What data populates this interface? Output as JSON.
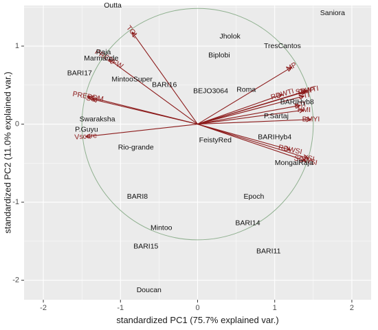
{
  "chart_data": {
    "type": "scatter",
    "subtype": "pca-biplot",
    "xlabel": "standardized PC1 (75.7% explained var.)",
    "ylabel": "standardized PC2 (11.0% explained var.)",
    "xlim": [
      -2.25,
      2.25
    ],
    "ylim": [
      -2.25,
      1.52
    ],
    "xticks": [
      -2,
      -1,
      0,
      1,
      2
    ],
    "yticks": [
      -2,
      -1,
      0,
      1
    ],
    "grid": true,
    "background": "#ebebeb",
    "grid_color": "#ffffff",
    "circle_color": "#8fb08f",
    "arrow_color": "#8b1a1a",
    "observations": [
      {
        "label": "Outta",
        "x": -1.1,
        "y": 1.52
      },
      {
        "label": "Saniora",
        "x": 1.75,
        "y": 1.42
      },
      {
        "label": "Jholok",
        "x": 0.42,
        "y": 1.12
      },
      {
        "label": "TresCantos",
        "x": 1.1,
        "y": 1.0
      },
      {
        "label": "Biplobi",
        "x": 0.28,
        "y": 0.88
      },
      {
        "label": "Raja",
        "x": -1.22,
        "y": 0.92
      },
      {
        "label": "Marmande",
        "x": -1.25,
        "y": 0.84
      },
      {
        "label": "BARI17",
        "x": -1.53,
        "y": 0.65
      },
      {
        "label": "MintooSuper",
        "x": -0.85,
        "y": 0.57
      },
      {
        "label": "BARI16",
        "x": -0.43,
        "y": 0.5
      },
      {
        "label": "BEJO3064",
        "x": 0.17,
        "y": 0.42
      },
      {
        "label": "Roma",
        "x": 0.63,
        "y": 0.44
      },
      {
        "label": "BARIHyb8",
        "x": 1.29,
        "y": 0.28
      },
      {
        "label": "P.Sartaj",
        "x": 1.02,
        "y": 0.1
      },
      {
        "label": "Swaraksha",
        "x": -1.3,
        "y": 0.06
      },
      {
        "label": "P.Guyu",
        "x": -1.44,
        "y": -0.07
      },
      {
        "label": "BARIHyb4",
        "x": 1.0,
        "y": -0.17
      },
      {
        "label": "FeistyRed",
        "x": 0.23,
        "y": -0.21
      },
      {
        "label": "Rio-grande",
        "x": -0.8,
        "y": -0.3
      },
      {
        "label": "MongalRaja",
        "x": 1.25,
        "y": -0.5
      },
      {
        "label": "BARI8",
        "x": -0.78,
        "y": -0.93
      },
      {
        "label": "Epoch",
        "x": 0.73,
        "y": -0.93
      },
      {
        "label": "BARI14",
        "x": 0.65,
        "y": -1.27
      },
      {
        "label": "Mintoo",
        "x": -0.47,
        "y": -1.33
      },
      {
        "label": "BARI15",
        "x": -0.67,
        "y": -1.57
      },
      {
        "label": "BARI11",
        "x": 0.92,
        "y": -1.63
      },
      {
        "label": "Doucan",
        "x": -0.63,
        "y": -2.13
      }
    ],
    "loadings": [
      {
        "label": "TOL",
        "x": -0.85,
        "y": 1.18,
        "angle": 50
      },
      {
        "label": "PREDFW",
        "x": -1.15,
        "y": 0.83,
        "angle": 30
      },
      {
        "label": "PREDDM",
        "x": -1.42,
        "y": 0.35,
        "angle": 10
      },
      {
        "label": "SSI",
        "x": -1.37,
        "y": 0.32,
        "angle": 10
      },
      {
        "label": "Vscore",
        "x": -1.45,
        "y": -0.16,
        "angle": -5
      },
      {
        "label": "MP",
        "x": 1.22,
        "y": 0.73,
        "angle": -30
      },
      {
        "label": "RDWTI",
        "x": 1.1,
        "y": 0.38,
        "angle": -16
      },
      {
        "label": "SDWTI",
        "x": 1.42,
        "y": 0.43,
        "angle": -10
      },
      {
        "label": "GMP",
        "x": 1.41,
        "y": 0.42,
        "angle": -10
      },
      {
        "label": "STI",
        "x": 1.38,
        "y": 0.36,
        "angle": -10
      },
      {
        "label": "KTI",
        "x": 1.33,
        "y": 0.24,
        "angle": -10
      },
      {
        "label": "HMI",
        "x": 1.38,
        "y": 0.18,
        "angle": 0
      },
      {
        "label": "BMYI",
        "x": 1.47,
        "y": 0.06,
        "angle": 0
      },
      {
        "label": "RDWSI",
        "x": 1.2,
        "y": -0.33,
        "angle": 12
      },
      {
        "label": "SDWSI",
        "x": 1.4,
        "y": -0.47,
        "angle": 12
      },
      {
        "label": "YSI",
        "x": 1.44,
        "y": -0.44,
        "angle": 12
      }
    ]
  }
}
